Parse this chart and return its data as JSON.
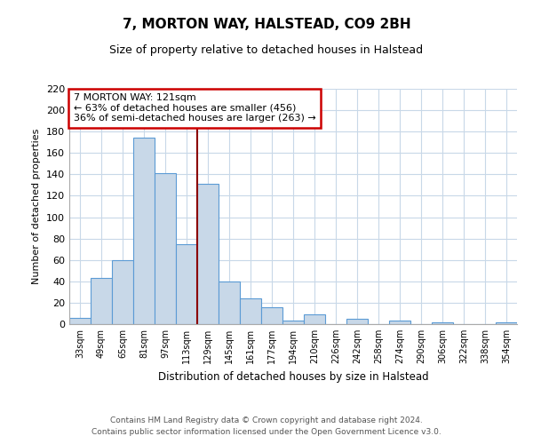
{
  "title": "7, MORTON WAY, HALSTEAD, CO9 2BH",
  "subtitle": "Size of property relative to detached houses in Halstead",
  "xlabel": "Distribution of detached houses by size in Halstead",
  "ylabel": "Number of detached properties",
  "categories": [
    "33sqm",
    "49sqm",
    "65sqm",
    "81sqm",
    "97sqm",
    "113sqm",
    "129sqm",
    "145sqm",
    "161sqm",
    "177sqm",
    "194sqm",
    "210sqm",
    "226sqm",
    "242sqm",
    "258sqm",
    "274sqm",
    "290sqm",
    "306sqm",
    "322sqm",
    "338sqm",
    "354sqm"
  ],
  "values": [
    6,
    43,
    60,
    174,
    141,
    75,
    131,
    40,
    24,
    16,
    3,
    9,
    0,
    5,
    0,
    3,
    0,
    2,
    0,
    0,
    2
  ],
  "bar_color": "#c8d8e8",
  "bar_edge_color": "#5b9bd5",
  "vline_x": 6.0,
  "vline_color": "#8b0000",
  "annotation_text": "7 MORTON WAY: 121sqm\n← 63% of detached houses are smaller (456)\n36% of semi-detached houses are larger (263) →",
  "annotation_box_color": "#ffffff",
  "annotation_box_edge": "#cc0000",
  "ylim": [
    0,
    220
  ],
  "yticks": [
    0,
    20,
    40,
    60,
    80,
    100,
    120,
    140,
    160,
    180,
    200,
    220
  ],
  "footer1": "Contains HM Land Registry data © Crown copyright and database right 2024.",
  "footer2": "Contains public sector information licensed under the Open Government Licence v3.0.",
  "bg_color": "#ffffff",
  "grid_color": "#c8d8e8"
}
